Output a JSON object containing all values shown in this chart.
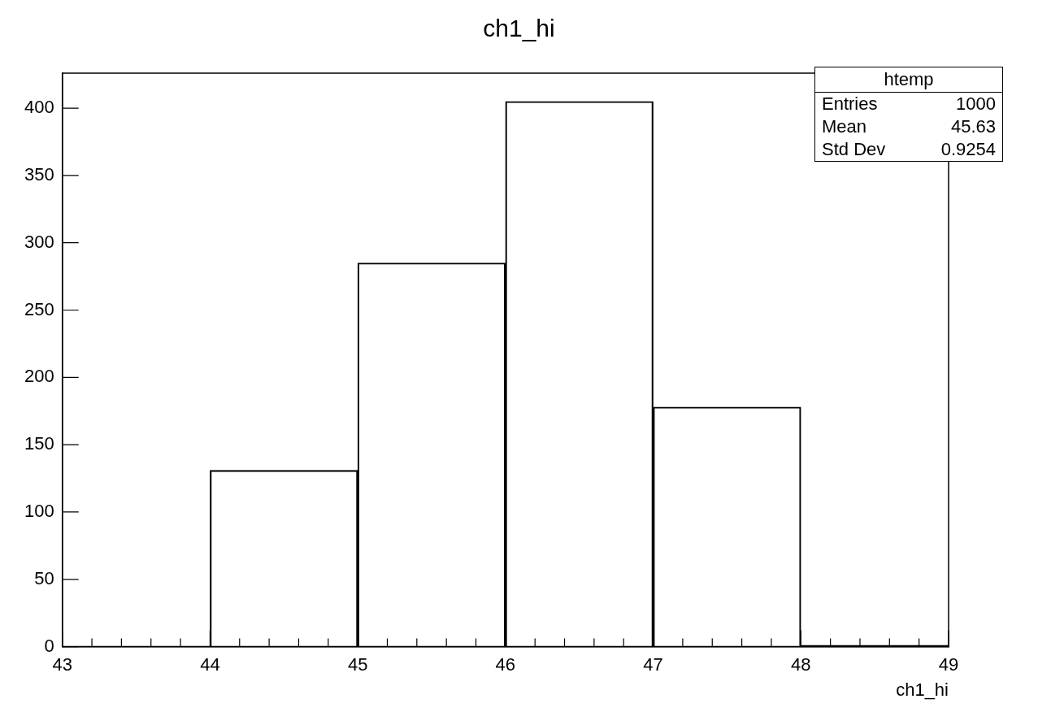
{
  "chart_data": {
    "type": "histogram",
    "title": "ch1_hi",
    "xlabel": "ch1_hi",
    "bins": [
      44,
      45,
      46,
      47,
      48,
      49
    ],
    "values": [
      131,
      285,
      405,
      178,
      1
    ],
    "color": "#000000",
    "xlim": [
      43,
      49
    ],
    "xticks": [
      43,
      {
        "value": 43.2,
        "label": null
      },
      {
        "value": 43.4,
        "label": null
      },
      {
        "value": 43.6,
        "label": null
      },
      {
        "value": 43.8,
        "label": null
      },
      44,
      {
        "value": 44.2,
        "label": null
      },
      {
        "value": 44.4,
        "label": null
      },
      {
        "value": 44.6,
        "label": null
      },
      {
        "value": 44.8,
        "label": null
      },
      45,
      {
        "value": 45.2,
        "label": null
      },
      {
        "value": 45.4,
        "label": null
      },
      {
        "value": 45.6,
        "label": null
      },
      {
        "value": 45.8,
        "label": null
      },
      46,
      {
        "value": 46.2,
        "label": null
      },
      {
        "value": 46.4,
        "label": null
      },
      {
        "value": 46.6,
        "label": null
      },
      {
        "value": 46.8,
        "label": null
      },
      47,
      {
        "value": 47.2,
        "label": null
      },
      {
        "value": 47.4,
        "label": null
      },
      {
        "value": 47.6,
        "label": null
      },
      {
        "value": 47.8,
        "label": null
      },
      48,
      {
        "value": 48.2,
        "label": null
      },
      {
        "value": 48.4,
        "label": null
      },
      {
        "value": 48.6,
        "label": null
      },
      {
        "value": 48.8,
        "label": null
      },
      49
    ],
    "ylim": [
      0,
      426
    ],
    "yticks": [
      0,
      50,
      100,
      150,
      200,
      250,
      300,
      350,
      400
    ],
    "grid": false,
    "legend": false,
    "annotations": [
      "htemp",
      "Entries",
      "1000",
      "Mean",
      "45.63",
      "Std Dev",
      "0.9254"
    ]
  }
}
